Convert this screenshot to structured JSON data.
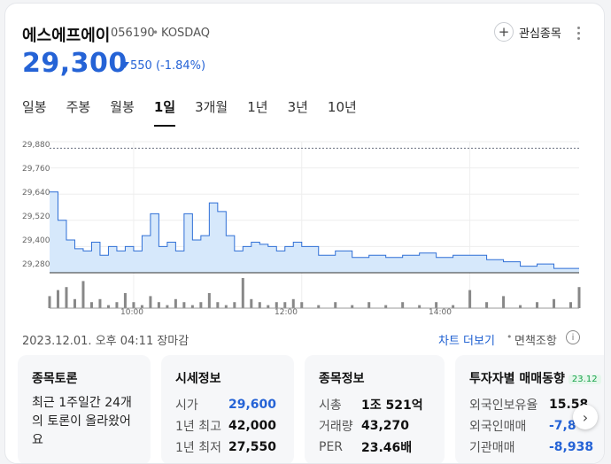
{
  "header": {
    "name": "에스에프에이",
    "code": "056190",
    "separator": "•",
    "market": "KOSDAQ",
    "favorite_label": "관심종목",
    "price": "29,300",
    "change": "550 (-1.84%)"
  },
  "tabs": [
    {
      "label": "일봉",
      "active": false
    },
    {
      "label": "주봉",
      "active": false
    },
    {
      "label": "월봉",
      "active": false
    },
    {
      "label": "1일",
      "active": true
    },
    {
      "label": "3개월",
      "active": false
    },
    {
      "label": "1년",
      "active": false
    },
    {
      "label": "3년",
      "active": false
    },
    {
      "label": "10년",
      "active": false
    }
  ],
  "chart_data": {
    "type": "area",
    "y_ticks": [
      "29,880",
      "29,760",
      "29,640",
      "29,520",
      "29,400",
      "29,280"
    ],
    "x_ticks": [
      "10:00",
      "12:00",
      "14:00"
    ],
    "ylim": [
      29280,
      29880
    ],
    "reference_line": 29850,
    "x": [
      9.0,
      9.1,
      9.2,
      9.3,
      9.4,
      9.5,
      9.6,
      9.7,
      9.8,
      9.9,
      10.0,
      10.1,
      10.2,
      10.3,
      10.4,
      10.5,
      10.6,
      10.7,
      10.8,
      10.9,
      11.0,
      11.1,
      11.2,
      11.3,
      11.4,
      11.5,
      11.6,
      11.7,
      11.8,
      11.9,
      12.0,
      12.2,
      12.4,
      12.6,
      12.8,
      13.0,
      13.2,
      13.4,
      13.6,
      13.8,
      14.0,
      14.2,
      14.4,
      14.6,
      14.8,
      15.0,
      15.2,
      15.3
    ],
    "values": [
      29650,
      29520,
      29430,
      29390,
      29380,
      29420,
      29360,
      29400,
      29380,
      29400,
      29380,
      29450,
      29550,
      29400,
      29420,
      29380,
      29550,
      29430,
      29450,
      29600,
      29560,
      29450,
      29380,
      29400,
      29420,
      29410,
      29400,
      29380,
      29400,
      29420,
      29400,
      29360,
      29380,
      29350,
      29360,
      29350,
      29360,
      29370,
      29350,
      29360,
      29360,
      29340,
      29330,
      29310,
      29320,
      29300,
      29300,
      29300
    ],
    "volume": [
      4,
      6,
      7,
      3,
      9,
      2,
      3,
      1,
      2,
      5,
      2,
      1,
      4,
      2,
      1,
      3,
      2,
      1,
      2,
      5,
      2,
      1,
      2,
      10,
      3,
      2,
      1,
      2,
      2,
      3,
      2,
      1,
      2,
      1,
      2,
      1,
      2,
      1,
      2,
      1,
      6,
      2,
      4,
      1,
      2,
      3,
      2,
      7
    ],
    "colors": {
      "line": "#2f6fd6",
      "fill": "#d6e8fb",
      "volume": "#888888",
      "reference": "#6b7280"
    }
  },
  "footer": {
    "timestamp": "2023.12.01. 오후 04:11 장마감",
    "chart_link": "차트 더보기",
    "separator": "•",
    "disclaimer": "면책조항",
    "info_icon": "ⓘ"
  },
  "cards": {
    "discussion": {
      "title": "종목토론",
      "text": "최근 1주일간 24개의 토론이 올라왔어요"
    },
    "market": {
      "title": "시세정보",
      "rows": [
        {
          "k": "시가",
          "v": "29,600"
        },
        {
          "k": "1년 최고",
          "v": "42,000"
        },
        {
          "k": "1년 최저",
          "v": "27,550"
        }
      ]
    },
    "info": {
      "title": "종목정보",
      "rows": [
        {
          "k": "시총",
          "v": "1조 521억"
        },
        {
          "k": "거래량",
          "v": "43,270"
        },
        {
          "k": "PER",
          "v": "23.46배"
        }
      ]
    },
    "investor": {
      "title": "투자자별 매매동향",
      "badge": "23.12",
      "rows": [
        {
          "k": "외국인보유율",
          "v": "15.58"
        },
        {
          "k": "외국인매매",
          "v": "-7,8"
        },
        {
          "k": "기관매매",
          "v": "-8,938"
        }
      ]
    }
  }
}
